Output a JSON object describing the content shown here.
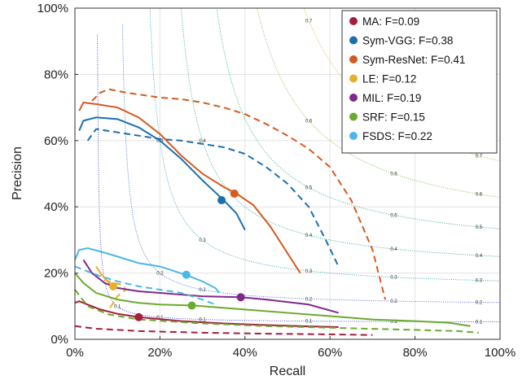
{
  "chart_data": {
    "type": "line",
    "title": "",
    "xlabel": "Recall",
    "ylabel": "Precision",
    "xlim": [
      0,
      1
    ],
    "ylim": [
      0,
      1
    ],
    "x_ticks": [
      "0%",
      "20%",
      "40%",
      "60%",
      "80%",
      "100%"
    ],
    "y_ticks": [
      "0%",
      "20%",
      "40%",
      "60%",
      "80%",
      "100%"
    ],
    "grid": true,
    "legend_position": "top-right",
    "iso_f_levels": [
      0.1,
      0.2,
      0.3,
      0.4,
      0.5,
      0.6,
      0.7
    ],
    "iso_f_colors": [
      "#3b3bd8",
      "#3b6ee0",
      "#2aa0c0",
      "#2aa39a",
      "#2eae72",
      "#7bbf3c",
      "#d7b52a"
    ],
    "series": [
      {
        "name": "MA: F=0.09",
        "color": "#a51d3c",
        "solid": [
          [
            0.0,
            0.11
          ],
          [
            0.01,
            0.115
          ],
          [
            0.03,
            0.105
          ],
          [
            0.06,
            0.09
          ],
          [
            0.1,
            0.077
          ],
          [
            0.15,
            0.067
          ],
          [
            0.25,
            0.055
          ],
          [
            0.35,
            0.048
          ],
          [
            0.45,
            0.043
          ],
          [
            0.55,
            0.039
          ],
          [
            0.62,
            0.037
          ]
        ],
        "dashed": [
          [
            0.0,
            0.04
          ],
          [
            0.05,
            0.032
          ],
          [
            0.15,
            0.025
          ],
          [
            0.3,
            0.02
          ],
          [
            0.45,
            0.017
          ],
          [
            0.6,
            0.015
          ],
          [
            0.7,
            0.013
          ]
        ],
        "marker": [
          0.15,
          0.067
        ]
      },
      {
        "name": "Sym-VGG: F=0.38",
        "color": "#1c6fae",
        "solid": [
          [
            0.01,
            0.63
          ],
          [
            0.02,
            0.66
          ],
          [
            0.05,
            0.67
          ],
          [
            0.1,
            0.665
          ],
          [
            0.15,
            0.64
          ],
          [
            0.2,
            0.6
          ],
          [
            0.25,
            0.545
          ],
          [
            0.3,
            0.48
          ],
          [
            0.35,
            0.42
          ],
          [
            0.38,
            0.38
          ],
          [
            0.4,
            0.33
          ]
        ],
        "dashed": [
          [
            0.03,
            0.6
          ],
          [
            0.05,
            0.635
          ],
          [
            0.1,
            0.625
          ],
          [
            0.15,
            0.615
          ],
          [
            0.2,
            0.605
          ],
          [
            0.25,
            0.6
          ],
          [
            0.3,
            0.59
          ],
          [
            0.35,
            0.58
          ],
          [
            0.4,
            0.56
          ],
          [
            0.45,
            0.52
          ],
          [
            0.5,
            0.47
          ],
          [
            0.55,
            0.4
          ],
          [
            0.59,
            0.3
          ],
          [
            0.62,
            0.22
          ]
        ],
        "marker": [
          0.345,
          0.42
        ]
      },
      {
        "name": "Sym-ResNet: F=0.41",
        "color": "#d65a20",
        "solid": [
          [
            0.01,
            0.69
          ],
          [
            0.02,
            0.715
          ],
          [
            0.05,
            0.71
          ],
          [
            0.1,
            0.7
          ],
          [
            0.15,
            0.67
          ],
          [
            0.2,
            0.62
          ],
          [
            0.25,
            0.555
          ],
          [
            0.3,
            0.5
          ],
          [
            0.35,
            0.46
          ],
          [
            0.38,
            0.44
          ],
          [
            0.42,
            0.405
          ],
          [
            0.46,
            0.34
          ],
          [
            0.5,
            0.26
          ],
          [
            0.53,
            0.2
          ]
        ],
        "dashed": [
          [
            0.04,
            0.72
          ],
          [
            0.06,
            0.745
          ],
          [
            0.08,
            0.755
          ],
          [
            0.12,
            0.745
          ],
          [
            0.2,
            0.73
          ],
          [
            0.25,
            0.725
          ],
          [
            0.3,
            0.715
          ],
          [
            0.35,
            0.7
          ],
          [
            0.4,
            0.68
          ],
          [
            0.45,
            0.65
          ],
          [
            0.5,
            0.615
          ],
          [
            0.55,
            0.575
          ],
          [
            0.6,
            0.52
          ],
          [
            0.65,
            0.42
          ],
          [
            0.7,
            0.27
          ],
          [
            0.73,
            0.12
          ]
        ],
        "marker": [
          0.375,
          0.44
        ]
      },
      {
        "name": "LE: F=0.12",
        "color": "#e8b02a",
        "solid": [
          [
            0.05,
            0.22
          ],
          [
            0.06,
            0.2
          ],
          [
            0.07,
            0.185
          ],
          [
            0.08,
            0.17
          ],
          [
            0.09,
            0.16
          ],
          [
            0.1,
            0.155
          ]
        ],
        "dashed": [
          [
            0.07,
            0.18
          ],
          [
            0.08,
            0.175
          ],
          [
            0.09,
            0.17
          ],
          [
            0.11,
            0.165
          ],
          [
            0.12,
            0.15
          ],
          [
            0.1,
            0.13
          ],
          [
            0.09,
            0.11
          ],
          [
            0.08,
            0.09
          ]
        ],
        "marker": [
          0.09,
          0.16
        ]
      },
      {
        "name": "MIL: F=0.19",
        "color": "#7e2a8c",
        "solid": [
          [
            0.02,
            0.24
          ],
          [
            0.04,
            0.2
          ],
          [
            0.07,
            0.17
          ],
          [
            0.1,
            0.155
          ],
          [
            0.15,
            0.145
          ],
          [
            0.2,
            0.14
          ],
          [
            0.25,
            0.135
          ],
          [
            0.3,
            0.13
          ],
          [
            0.39,
            0.127
          ],
          [
            0.45,
            0.12
          ],
          [
            0.55,
            0.105
          ],
          [
            0.62,
            0.08
          ]
        ],
        "dashed": [],
        "marker": [
          0.39,
          0.127
        ]
      },
      {
        "name": "SRF: F=0.15",
        "color": "#6aaa2e",
        "solid": [
          [
            0.0,
            0.2
          ],
          [
            0.02,
            0.17
          ],
          [
            0.05,
            0.14
          ],
          [
            0.1,
            0.12
          ],
          [
            0.15,
            0.11
          ],
          [
            0.2,
            0.105
          ],
          [
            0.28,
            0.102
          ],
          [
            0.4,
            0.09
          ],
          [
            0.5,
            0.08
          ],
          [
            0.6,
            0.07
          ],
          [
            0.7,
            0.06
          ],
          [
            0.8,
            0.055
          ],
          [
            0.88,
            0.05
          ],
          [
            0.93,
            0.04
          ]
        ],
        "dashed": [
          [
            0.0,
            0.15
          ],
          [
            0.03,
            0.1
          ],
          [
            0.08,
            0.075
          ],
          [
            0.15,
            0.06
          ],
          [
            0.3,
            0.048
          ],
          [
            0.45,
            0.04
          ],
          [
            0.6,
            0.035
          ],
          [
            0.75,
            0.03
          ],
          [
            0.9,
            0.025
          ],
          [
            0.95,
            0.02
          ]
        ],
        "marker": [
          0.275,
          0.102
        ]
      },
      {
        "name": "FSDS: F=0.22",
        "color": "#4ab8e8",
        "solid": [
          [
            0.0,
            0.24
          ],
          [
            0.01,
            0.27
          ],
          [
            0.03,
            0.275
          ],
          [
            0.06,
            0.265
          ],
          [
            0.1,
            0.25
          ],
          [
            0.15,
            0.23
          ],
          [
            0.2,
            0.22
          ],
          [
            0.26,
            0.195
          ],
          [
            0.3,
            0.175
          ],
          [
            0.33,
            0.155
          ],
          [
            0.34,
            0.14
          ]
        ],
        "dashed": [
          [
            0.0,
            0.22
          ],
          [
            0.02,
            0.21
          ],
          [
            0.05,
            0.195
          ],
          [
            0.1,
            0.175
          ],
          [
            0.15,
            0.16
          ],
          [
            0.2,
            0.15
          ],
          [
            0.25,
            0.14
          ],
          [
            0.3,
            0.12
          ],
          [
            0.33,
            0.105
          ]
        ],
        "marker": [
          0.262,
          0.195
        ]
      }
    ]
  }
}
